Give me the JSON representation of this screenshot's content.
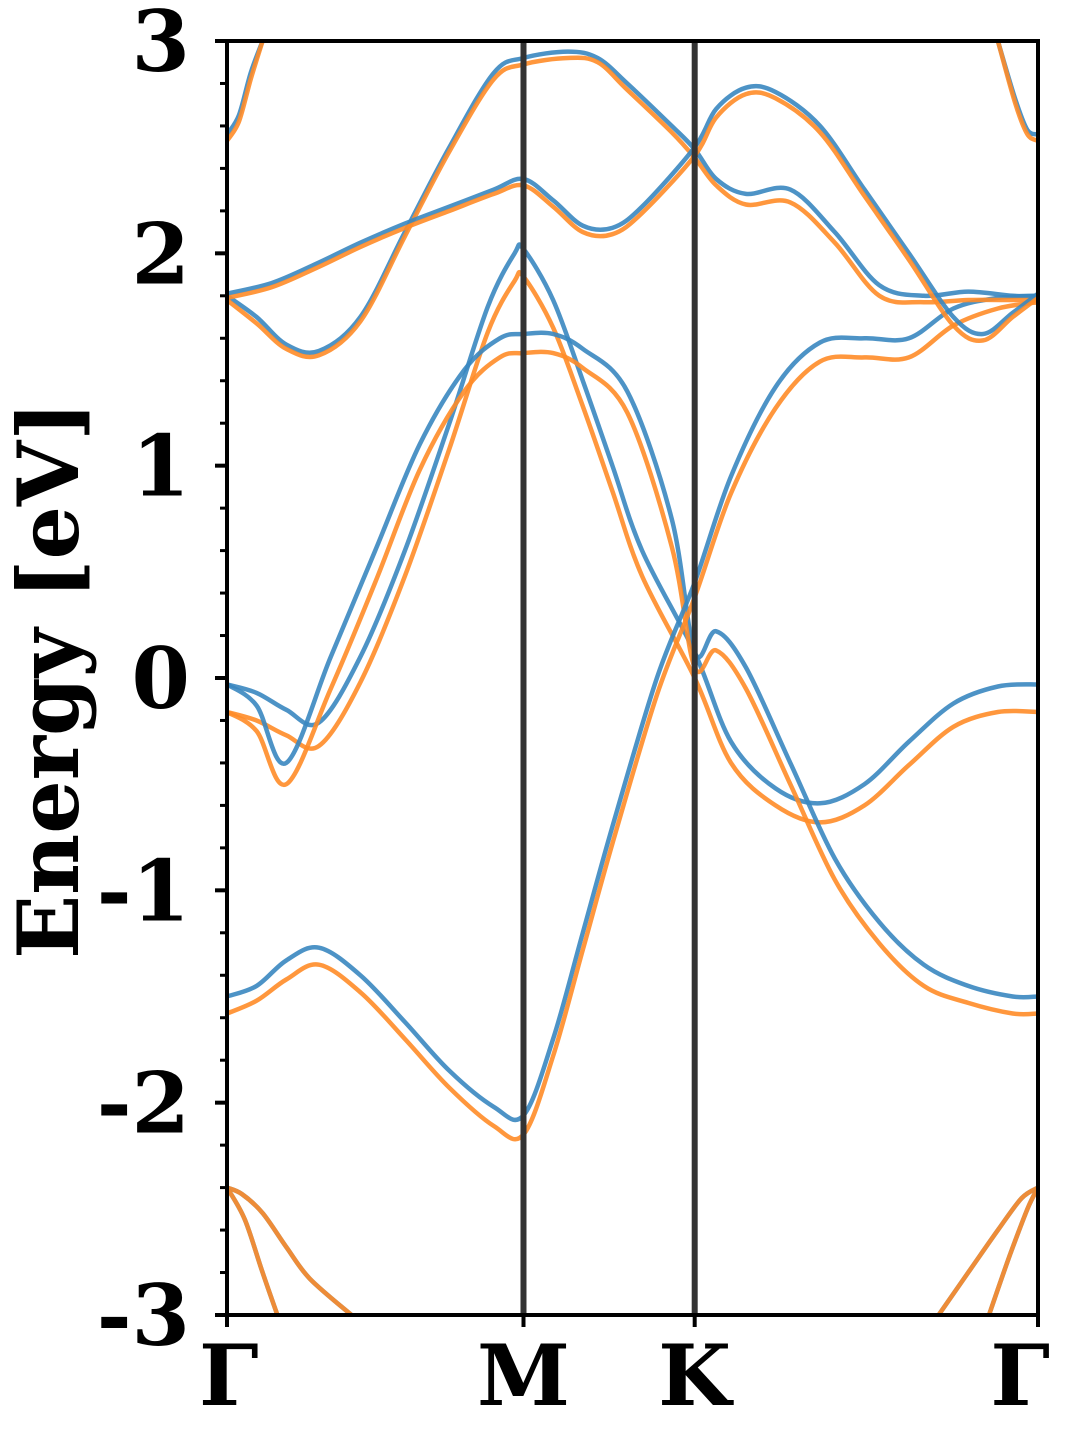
{
  "chart_data": {
    "type": "line",
    "title": "",
    "xlabel": "",
    "ylabel": "Energy [eV]",
    "ylim": [
      -3,
      3
    ],
    "xlim": [
      0,
      2.7353
    ],
    "grid": false,
    "legend": "none",
    "y_ticks": [
      {
        "value": 3,
        "label": "3"
      },
      {
        "value": 2,
        "label": "2"
      },
      {
        "value": 1,
        "label": "1"
      },
      {
        "value": 0,
        "label": "0"
      },
      {
        "value": -1,
        "label": "-1"
      },
      {
        "value": -2,
        "label": "-2"
      },
      {
        "value": -3,
        "label": "-3"
      }
    ],
    "y_minor_step": 0.2,
    "x_ticks": [
      {
        "value": 0,
        "label": "Γ"
      },
      {
        "value": 1.0,
        "label": "M"
      },
      {
        "value": 1.5774,
        "label": "K"
      },
      {
        "value": 2.7353,
        "label": "Γ"
      }
    ],
    "vlines": [
      1.0,
      1.5774
    ],
    "colors": {
      "blue": "#3a87c0",
      "orange": "#ff8c28",
      "vline": "#333333",
      "axis": "#000000"
    },
    "series": [
      {
        "color": "blue",
        "x": [
          0,
          0.1,
          0.2,
          0.31,
          0.45,
          0.6,
          0.75,
          0.88,
          0.97,
          1.0,
          1.1,
          1.2,
          1.3,
          1.4,
          1.5774,
          1.7,
          1.85,
          2.0,
          2.15,
          2.3,
          2.45,
          2.6,
          2.7353
        ],
        "y": [
          -0.03,
          -0.07,
          -0.15,
          -0.21,
          0.1,
          0.6,
          1.2,
          1.75,
          2.0,
          2.02,
          1.78,
          1.4,
          1.0,
          0.6,
          0.12,
          -0.3,
          -0.52,
          -0.59,
          -0.5,
          -0.3,
          -0.12,
          -0.04,
          -0.03
        ]
      },
      {
        "color": "orange",
        "x": [
          0,
          0.1,
          0.2,
          0.31,
          0.45,
          0.6,
          0.75,
          0.88,
          0.97,
          1.0,
          1.1,
          1.2,
          1.3,
          1.4,
          1.5774,
          1.7,
          1.85,
          2.0,
          2.15,
          2.3,
          2.45,
          2.6,
          2.7353
        ],
        "y": [
          -0.16,
          -0.2,
          -0.27,
          -0.32,
          -0.02,
          0.48,
          1.08,
          1.63,
          1.87,
          1.89,
          1.65,
          1.28,
          0.88,
          0.48,
          0.0,
          -0.4,
          -0.6,
          -0.68,
          -0.6,
          -0.41,
          -0.23,
          -0.16,
          -0.16
        ]
      },
      {
        "color": "blue",
        "x": [
          0,
          0.1,
          0.2,
          0.35,
          0.5,
          0.65,
          0.8,
          0.92,
          1.0,
          1.1,
          1.2,
          1.35,
          1.5,
          1.5774,
          1.65,
          1.75,
          1.9,
          2.05,
          2.2,
          2.35,
          2.5,
          2.65,
          2.7353
        ],
        "y": [
          -0.03,
          -0.13,
          -0.4,
          0.1,
          0.6,
          1.1,
          1.45,
          1.6,
          1.62,
          1.62,
          1.55,
          1.35,
          0.75,
          0.12,
          0.22,
          0.05,
          -0.4,
          -0.85,
          -1.15,
          -1.35,
          -1.45,
          -1.5,
          -1.5
        ]
      },
      {
        "color": "orange",
        "x": [
          0,
          0.1,
          0.2,
          0.35,
          0.5,
          0.65,
          0.8,
          0.92,
          1.0,
          1.1,
          1.2,
          1.35,
          1.5,
          1.5774,
          1.65,
          1.75,
          1.9,
          2.05,
          2.2,
          2.35,
          2.5,
          2.65,
          2.7353
        ],
        "y": [
          -0.16,
          -0.25,
          -0.5,
          -0.05,
          0.45,
          0.98,
          1.35,
          1.51,
          1.53,
          1.53,
          1.46,
          1.25,
          0.62,
          0.05,
          0.13,
          -0.05,
          -0.5,
          -0.95,
          -1.25,
          -1.45,
          -1.53,
          -1.58,
          -1.58
        ]
      },
      {
        "color": "blue",
        "x": [
          0,
          0.1,
          0.2,
          0.31,
          0.45,
          0.6,
          0.75,
          0.9,
          1.0,
          1.1,
          1.2,
          1.3,
          1.45,
          1.5774,
          1.7,
          1.85,
          2.0,
          2.15,
          2.3,
          2.45,
          2.6,
          2.7353
        ],
        "y": [
          -1.5,
          -1.45,
          -1.33,
          -1.27,
          -1.4,
          -1.62,
          -1.85,
          -2.02,
          -2.06,
          -1.7,
          -1.2,
          -0.7,
          0.0,
          0.45,
          0.95,
          1.37,
          1.58,
          1.6,
          1.6,
          1.74,
          1.79,
          1.8
        ]
      },
      {
        "color": "orange",
        "x": [
          0,
          0.1,
          0.2,
          0.31,
          0.45,
          0.6,
          0.75,
          0.9,
          1.0,
          1.1,
          1.2,
          1.3,
          1.45,
          1.5774,
          1.7,
          1.85,
          2.0,
          2.15,
          2.3,
          2.45,
          2.6,
          2.7353
        ],
        "y": [
          -1.58,
          -1.52,
          -1.42,
          -1.35,
          -1.48,
          -1.7,
          -1.93,
          -2.11,
          -2.15,
          -1.78,
          -1.28,
          -0.78,
          -0.08,
          0.38,
          0.87,
          1.27,
          1.49,
          1.51,
          1.51,
          1.66,
          1.74,
          1.77
        ]
      },
      {
        "color": "blue",
        "x": [
          0,
          0.1,
          0.2,
          0.31,
          0.45,
          0.6,
          0.75,
          0.9,
          1.0,
          1.15,
          1.25,
          1.35,
          1.5,
          1.5774,
          1.65,
          1.75,
          1.9,
          2.05,
          2.2,
          2.35,
          2.5,
          2.65,
          2.7353
        ],
        "y": [
          1.8,
          1.7,
          1.57,
          1.54,
          1.7,
          2.1,
          2.5,
          2.85,
          2.92,
          2.95,
          2.92,
          2.8,
          2.6,
          2.49,
          2.35,
          2.28,
          2.3,
          2.1,
          1.85,
          1.8,
          1.82,
          1.8,
          1.8
        ]
      },
      {
        "color": "orange",
        "x": [
          0,
          0.1,
          0.2,
          0.31,
          0.45,
          0.6,
          0.75,
          0.9,
          1.0,
          1.15,
          1.25,
          1.35,
          1.5,
          1.5774,
          1.65,
          1.75,
          1.9,
          2.05,
          2.2,
          2.35,
          2.5,
          2.65,
          2.7353
        ],
        "y": [
          1.78,
          1.67,
          1.55,
          1.52,
          1.68,
          2.08,
          2.48,
          2.82,
          2.89,
          2.92,
          2.9,
          2.77,
          2.57,
          2.45,
          2.32,
          2.23,
          2.24,
          2.05,
          1.8,
          1.77,
          1.78,
          1.78,
          1.78
        ]
      },
      {
        "color": "blue",
        "x": [
          0,
          0.15,
          0.3,
          0.45,
          0.6,
          0.75,
          0.9,
          1.0,
          1.1,
          1.2,
          1.3,
          1.4,
          1.5774,
          1.65,
          1.75,
          1.85,
          2.0,
          2.15,
          2.3,
          2.45,
          2.55,
          2.65,
          2.7353
        ],
        "y": [
          1.81,
          1.86,
          1.95,
          2.05,
          2.14,
          2.22,
          2.3,
          2.35,
          2.25,
          2.13,
          2.12,
          2.22,
          2.5,
          2.68,
          2.78,
          2.76,
          2.6,
          2.3,
          2.0,
          1.7,
          1.62,
          1.72,
          1.81
        ]
      },
      {
        "color": "orange",
        "x": [
          0,
          0.15,
          0.3,
          0.45,
          0.6,
          0.75,
          0.9,
          1.0,
          1.1,
          1.2,
          1.3,
          1.4,
          1.5774,
          1.65,
          1.75,
          1.85,
          2.0,
          2.15,
          2.3,
          2.45,
          2.55,
          2.65,
          2.7353
        ],
        "y": [
          1.79,
          1.84,
          1.93,
          2.03,
          2.12,
          2.2,
          2.28,
          2.32,
          2.22,
          2.1,
          2.09,
          2.19,
          2.46,
          2.64,
          2.75,
          2.73,
          2.57,
          2.27,
          1.97,
          1.66,
          1.59,
          1.7,
          1.79
        ]
      },
      {
        "color": "blue",
        "x": [
          0,
          0.04,
          0.08,
          0.12
        ],
        "y": [
          2.56,
          2.65,
          2.85,
          3.0
        ]
      },
      {
        "color": "orange",
        "x": [
          0,
          0.04,
          0.08,
          0.12
        ],
        "y": [
          2.53,
          2.62,
          2.82,
          3.0
        ]
      },
      {
        "color": "blue",
        "x": [
          2.6,
          2.66,
          2.7,
          2.7353
        ],
        "y": [
          3.0,
          2.72,
          2.58,
          2.56
        ]
      },
      {
        "color": "orange",
        "x": [
          2.6,
          2.66,
          2.7,
          2.7353
        ],
        "y": [
          3.0,
          2.7,
          2.56,
          2.53
        ]
      },
      {
        "color": "blue",
        "x": [
          0,
          0.05,
          0.12,
          0.2,
          0.28,
          0.42
        ],
        "y": [
          -2.4,
          -2.43,
          -2.52,
          -2.68,
          -2.83,
          -3.0
        ]
      },
      {
        "color": "orange",
        "x": [
          0,
          0.05,
          0.12,
          0.2,
          0.28,
          0.42
        ],
        "y": [
          -2.4,
          -2.43,
          -2.52,
          -2.68,
          -2.83,
          -3.0
        ]
      },
      {
        "color": "blue",
        "x": [
          0,
          0.06,
          0.12,
          0.17
        ],
        "y": [
          -2.4,
          -2.55,
          -2.8,
          -3.0
        ]
      },
      {
        "color": "orange",
        "x": [
          0,
          0.06,
          0.12,
          0.17
        ],
        "y": [
          -2.4,
          -2.55,
          -2.8,
          -3.0
        ]
      },
      {
        "color": "blue",
        "x": [
          2.4,
          2.5,
          2.6,
          2.68,
          2.7353
        ],
        "y": [
          -3.0,
          -2.8,
          -2.6,
          -2.45,
          -2.4
        ]
      },
      {
        "color": "orange",
        "x": [
          2.4,
          2.5,
          2.6,
          2.68,
          2.7353
        ],
        "y": [
          -3.0,
          -2.8,
          -2.6,
          -2.45,
          -2.4
        ]
      },
      {
        "color": "blue",
        "x": [
          2.57,
          2.64,
          2.7,
          2.7353
        ],
        "y": [
          -3.0,
          -2.72,
          -2.5,
          -2.4
        ]
      },
      {
        "color": "orange",
        "x": [
          2.57,
          2.64,
          2.7,
          2.7353
        ],
        "y": [
          -3.0,
          -2.72,
          -2.5,
          -2.4
        ]
      }
    ]
  }
}
